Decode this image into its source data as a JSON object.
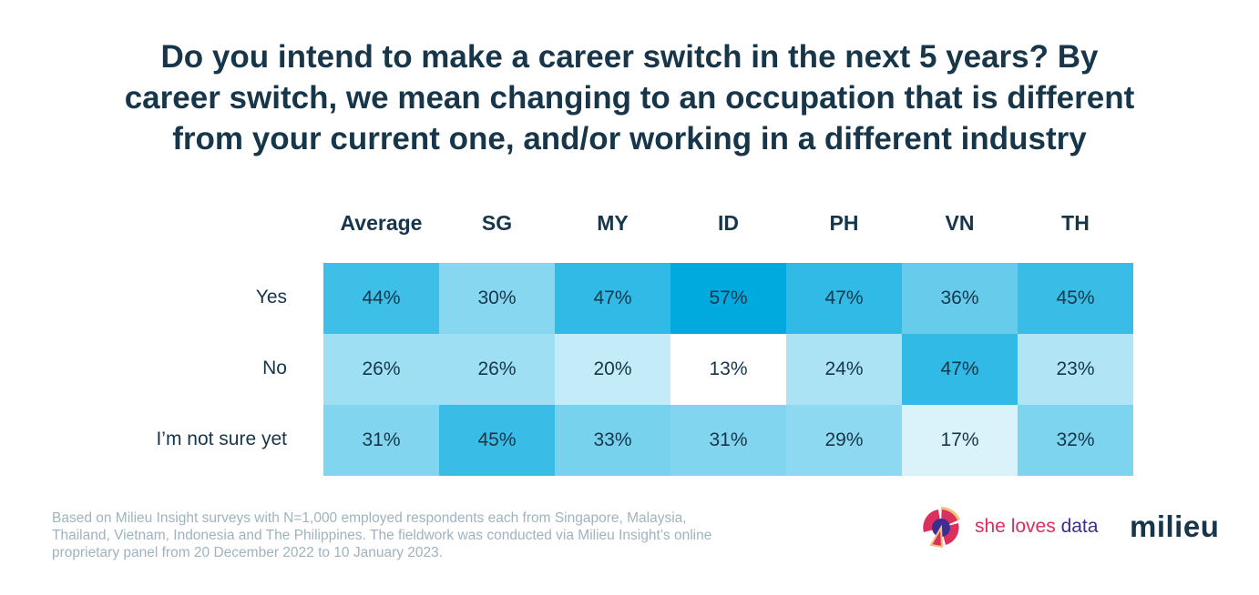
{
  "chart_data": {
    "type": "heatmap",
    "title_lines": [
      "Do you intend to make a career switch in the next 5 years? By",
      "career switch, we mean changing to an occupation that is different",
      "from your current one, and/or working in a different industry"
    ],
    "columns": [
      "Average",
      "SG",
      "MY",
      "ID",
      "PH",
      "VN",
      "TH"
    ],
    "rows": [
      "Yes",
      "No",
      "I’m not sure yet"
    ],
    "values": [
      [
        44,
        30,
        47,
        57,
        47,
        36,
        45
      ],
      [
        26,
        26,
        20,
        13,
        24,
        47,
        23
      ],
      [
        31,
        45,
        33,
        31,
        29,
        17,
        32
      ]
    ],
    "unit": "%",
    "color_scale": {
      "low": "#ffffff",
      "high": "#00aadf",
      "min": 13,
      "max": 57
    }
  },
  "footnote_lines": [
    "Based on Milieu Insight surveys with N=1,000 employed respondents each from Singapore, Malaysia,",
    "Thailand, Vietnam, Indonesia and The Philippines. The fieldwork was conducted via Milieu Insight’s online",
    "proprietary panel from 20 December 2022 to 10 January 2023."
  ],
  "logos": {
    "she_loves_data": "she loves data",
    "milieu": "milieu"
  }
}
